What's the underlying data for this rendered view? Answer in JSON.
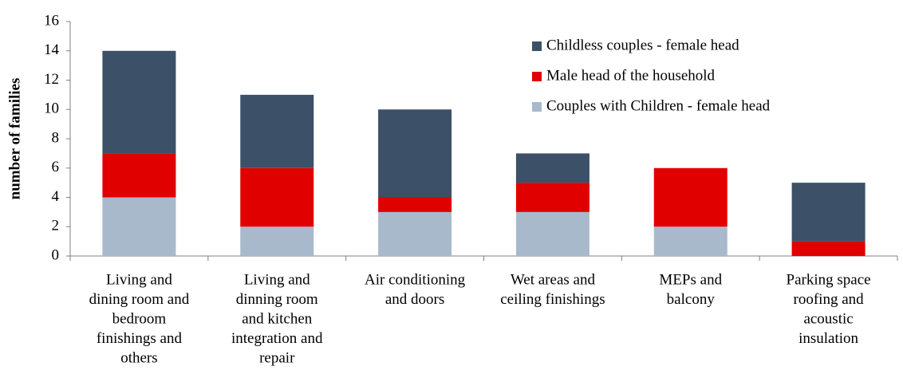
{
  "chart_data": {
    "type": "stacked_bar",
    "y_label": "number  of families",
    "categories": [
      [
        "Living and",
        "dining room and",
        "bedroom",
        "finishings and",
        "others"
      ],
      [
        "Living and",
        "dinning room",
        "and kitchen",
        "integration  and",
        "repair"
      ],
      [
        "Air conditioning",
        "and doors"
      ],
      [
        "Wet areas and",
        "ceiling finishings"
      ],
      [
        "MEPs and",
        "balcony"
      ],
      [
        "Parking space",
        "roofing and",
        "acoustic",
        "insulation"
      ]
    ],
    "series": [
      {
        "name": "Couples with Children - female head",
        "color": "#a9b9cc",
        "values": [
          4,
          2,
          3,
          3,
          2,
          0
        ]
      },
      {
        "name": "Male head of the household",
        "color": "#e00000",
        "values": [
          3,
          4,
          1,
          2,
          4,
          1
        ]
      },
      {
        "name": "Childless couples - female head",
        "color": "#3c5068",
        "values": [
          7,
          5,
          6,
          2,
          0,
          4
        ]
      }
    ],
    "ylim": [
      0,
      16
    ],
    "yticks": [
      0,
      2,
      4,
      6,
      8,
      10,
      12,
      14,
      16
    ],
    "grid": false,
    "legend": "top-right"
  }
}
